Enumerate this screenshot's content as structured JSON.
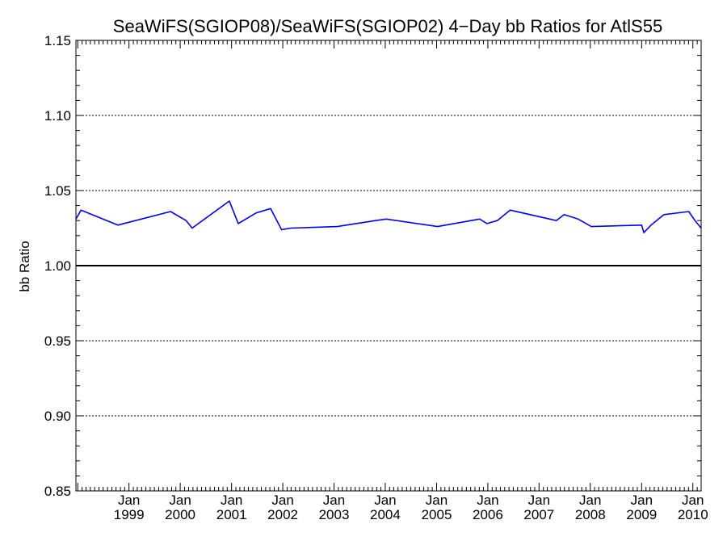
{
  "chart_data": {
    "type": "line",
    "title": "SeaWiFS(SGIOP08)/SeaWiFS(SGIOP02) 4−Day bb Ratios for AtlS55",
    "xlabel": "",
    "ylabel": "bb Ratio",
    "xlim": [
      "1997-12-19",
      "2010-03-01"
    ],
    "ylim": [
      0.85,
      1.15
    ],
    "y_ticks": [
      "0.85",
      "0.90",
      "0.95",
      "1.00",
      "1.05",
      "1.10",
      "1.15"
    ],
    "x_ticks": [
      {
        "date": "1999-01-01",
        "line1": "Jan",
        "line2": "1999"
      },
      {
        "date": "2000-01-01",
        "line1": "Jan",
        "line2": "2000"
      },
      {
        "date": "2001-01-01",
        "line1": "Jan",
        "line2": "2001"
      },
      {
        "date": "2002-01-01",
        "line1": "Jan",
        "line2": "2002"
      },
      {
        "date": "2003-01-01",
        "line1": "Jan",
        "line2": "2003"
      },
      {
        "date": "2004-01-01",
        "line1": "Jan",
        "line2": "2004"
      },
      {
        "date": "2005-01-01",
        "line1": "Jan",
        "line2": "2005"
      },
      {
        "date": "2006-01-01",
        "line1": "Jan",
        "line2": "2006"
      },
      {
        "date": "2007-01-01",
        "line1": "Jan",
        "line2": "2007"
      },
      {
        "date": "2008-01-01",
        "line1": "Jan",
        "line2": "2008"
      },
      {
        "date": "2009-01-01",
        "line1": "Jan",
        "line2": "2009"
      },
      {
        "date": "2010-01-01",
        "line1": "Jan",
        "line2": "2010"
      }
    ],
    "gridlines_y": [
      0.9,
      0.95,
      1.05,
      1.1
    ],
    "reference_line_y": 1.0,
    "series": [
      {
        "color": "#0000ff",
        "x": [
          "1997-12-19",
          "1998-01-24",
          "1998-10-14",
          "1999-10-24",
          "2000-02-12",
          "2000-03-26",
          "2000-12-16",
          "2001-02-18",
          "2001-06-23",
          "2001-10-06",
          "2001-12-23",
          "2002-03-02",
          "2003-01-24",
          "2003-10-24",
          "2004-01-08",
          "2005-01-08",
          "2005-11-04",
          "2005-12-26",
          "2006-03-09",
          "2006-06-09",
          "2007-05-04",
          "2007-06-29",
          "2007-10-06",
          "2008-01-08",
          "2009-01-01",
          "2009-01-17",
          "2009-03-09",
          "2009-06-09",
          "2009-12-03",
          "2010-01-16",
          "2010-03-01"
        ],
        "y": [
          1.031,
          1.037,
          1.027,
          1.036,
          1.03,
          1.025,
          1.043,
          1.028,
          1.035,
          1.038,
          1.024,
          1.025,
          1.026,
          1.03,
          1.031,
          1.026,
          1.031,
          1.028,
          1.03,
          1.037,
          1.03,
          1.034,
          1.031,
          1.026,
          1.027,
          1.022,
          1.027,
          1.034,
          1.036,
          1.03,
          1.025
        ]
      }
    ]
  }
}
